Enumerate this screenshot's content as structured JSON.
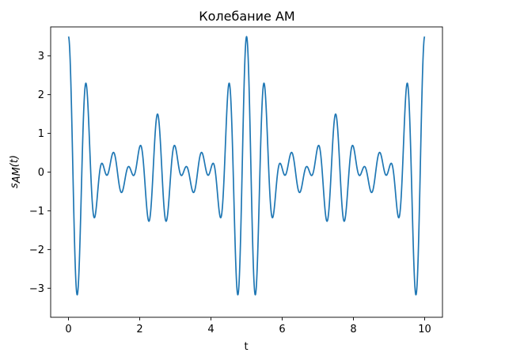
{
  "chart_data": {
    "type": "line",
    "title": "Колебание АМ",
    "xlabel": "t",
    "ylabel": {
      "base": "s",
      "sub": "AM",
      "arg": "(t)"
    },
    "xlim": [
      -0.5,
      10.5
    ],
    "ylim": [
      -3.75,
      3.75
    ],
    "xticks": [
      0,
      2,
      4,
      6,
      8,
      10
    ],
    "yticks": [
      -3,
      -2,
      -1,
      0,
      1,
      2,
      3
    ],
    "ytick_labels": [
      "−3",
      "−2",
      "−1",
      "0",
      "1",
      "2",
      "3"
    ],
    "grid": false,
    "series": [
      {
        "color": "#1f77b4",
        "function": "s(t) = (1 + 1.0·cos(2π·0.2·t) + 1.5·cos(2π·0.4·t))·cos(2π·2·t)",
        "x_range": [
          0,
          10
        ],
        "samples": 1500,
        "params": {
          "carrier_freq": 2,
          "mod_freqs": [
            0.2,
            0.4
          ],
          "mod_amps": [
            1.0,
            1.5
          ],
          "dc": 1
        }
      }
    ]
  }
}
